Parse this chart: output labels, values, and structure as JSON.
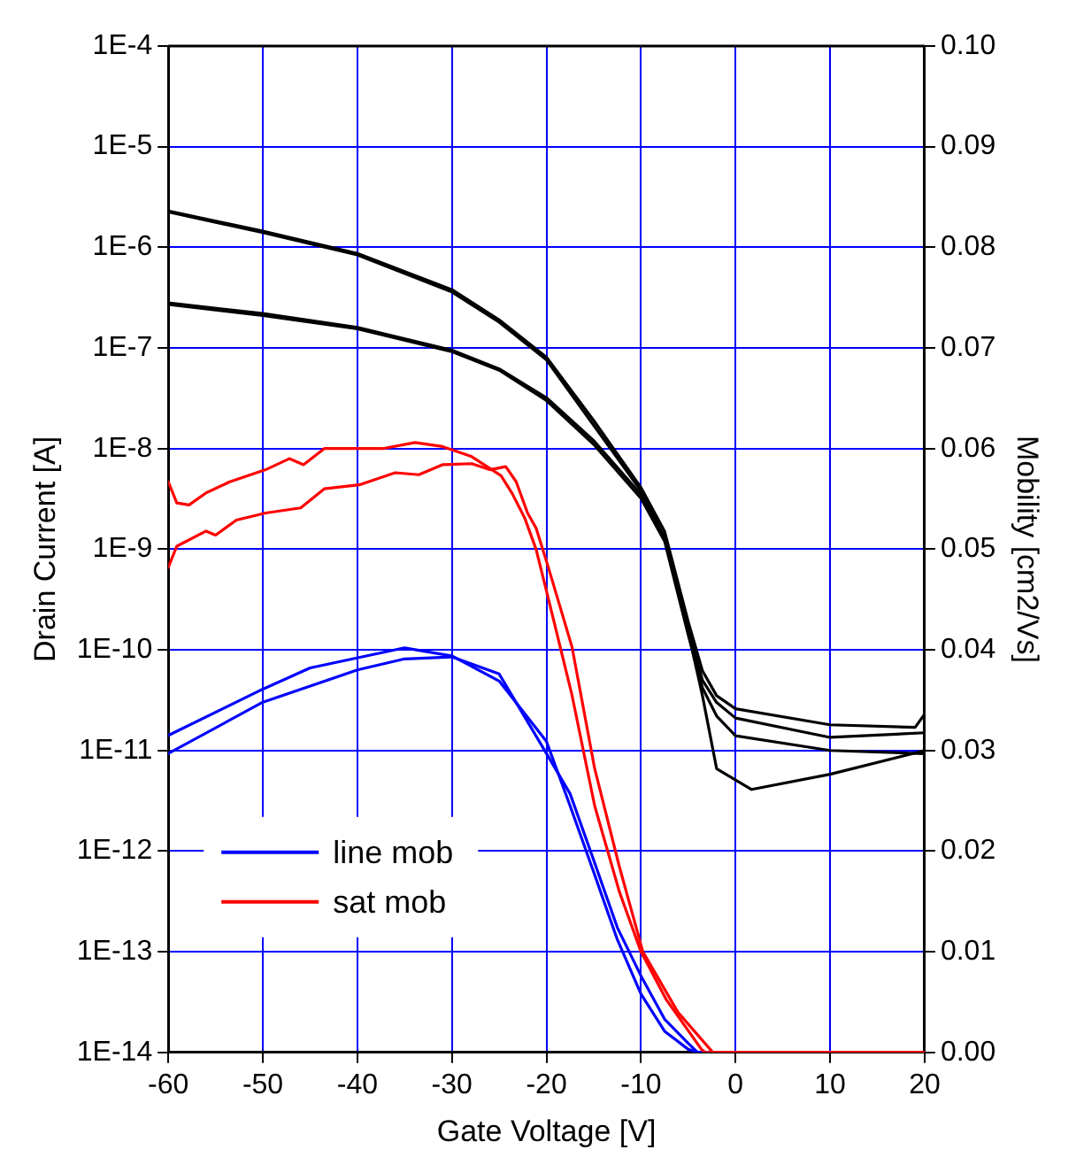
{
  "chart_data": {
    "type": "line",
    "xlabel": "Gate Voltage [V]",
    "ylabel": "Drain Current [A]",
    "y2label": "Mobility [cm2/Vs]",
    "xlim": [
      -60,
      20
    ],
    "xticks": [
      -60,
      -50,
      -40,
      -30,
      -20,
      -10,
      0,
      10,
      20
    ],
    "ylim": [
      1e-14,
      0.0001
    ],
    "yticks": [
      {
        "value": 1e-14,
        "label": "1E-14"
      },
      {
        "value": 1e-13,
        "label": "1E-13"
      },
      {
        "value": 1e-12,
        "label": "1E-12"
      },
      {
        "value": 1e-11,
        "label": "1E-11"
      },
      {
        "value": 1e-10,
        "label": "1E-10"
      },
      {
        "value": 1e-09,
        "label": "1E-9"
      },
      {
        "value": 1e-08,
        "label": "1E-8"
      },
      {
        "value": 1e-07,
        "label": "1E-7"
      },
      {
        "value": 1e-06,
        "label": "1E-6"
      },
      {
        "value": 1e-05,
        "label": "1E-5"
      },
      {
        "value": 0.0001,
        "label": "1E-4"
      }
    ],
    "y2lim": [
      0,
      0.1
    ],
    "y2ticks": [
      {
        "value": 0,
        "label": "0.00"
      },
      {
        "value": 0.01,
        "label": "0.01"
      },
      {
        "value": 0.02,
        "label": "0.02"
      },
      {
        "value": 0.03,
        "label": "0.03"
      },
      {
        "value": 0.04,
        "label": "0.04"
      },
      {
        "value": 0.05,
        "label": "0.05"
      },
      {
        "value": 0.06,
        "label": "0.06"
      },
      {
        "value": 0.07,
        "label": "0.07"
      },
      {
        "value": 0.08,
        "label": "0.08"
      },
      {
        "value": 0.09,
        "label": "0.09"
      },
      {
        "value": 0.1,
        "label": "0.10"
      }
    ],
    "log": "y",
    "grid": true,
    "legend": "bottom left",
    "marker": "none",
    "line_style": "solid",
    "series": [
      {
        "color": "#000000",
        "x": [
          -60,
          -50,
          -40,
          -30,
          -25,
          -20,
          -15,
          -10,
          -7.5,
          -5,
          -3.5,
          -2,
          0,
          10,
          19,
          20
        ],
        "values": [
          2.3e-06,
          1.45e-06,
          8.7e-07,
          3.8e-07,
          1.9e-07,
          8.1e-08,
          1.9e-08,
          4.1e-09,
          1.5e-09,
          1.9e-10,
          6.2e-11,
          3.5e-11,
          2.6e-11,
          1.8e-11,
          1.7e-11,
          2.3e-11
        ]
      },
      {
        "color": "#000000",
        "x": [
          -60,
          -50,
          -40,
          -30,
          -25,
          -20,
          -15,
          -10,
          -7.5,
          -5,
          -3.5,
          -2,
          1.7,
          10,
          20
        ],
        "values": [
          2.25e-06,
          1.4e-06,
          8.4e-07,
          3.6e-07,
          1.8e-07,
          7.6e-08,
          1.7e-08,
          3.8e-09,
          1.3e-09,
          1.5e-10,
          3.5e-11,
          6.6e-12,
          4.1e-12,
          5.8e-12,
          1e-11
        ]
      },
      {
        "color": "#000000",
        "x": [
          -60,
          -50,
          -40,
          -30,
          -25,
          -20,
          -15,
          -10,
          -7.5,
          -5,
          -3.5,
          -2,
          0,
          10,
          20
        ],
        "values": [
          2.8e-07,
          2.2e-07,
          1.6e-07,
          9.5e-08,
          6.2e-08,
          3.2e-08,
          1.2e-08,
          3.5e-09,
          1.3e-09,
          1.6e-10,
          5e-11,
          3e-11,
          2.1e-11,
          1.35e-11,
          1.5e-11
        ]
      },
      {
        "color": "#000000",
        "x": [
          -60,
          -50,
          -40,
          -30,
          -25,
          -20,
          -15,
          -10,
          -7.5,
          -5,
          -3.5,
          -2,
          0,
          10,
          20
        ],
        "values": [
          2.7e-07,
          2.1e-07,
          1.55e-07,
          9.2e-08,
          6e-08,
          3e-08,
          1.1e-08,
          3.2e-09,
          1.2e-09,
          1.4e-10,
          4.2e-11,
          2.2e-11,
          1.4e-11,
          1e-11,
          9.3e-12
        ]
      },
      {
        "name": "line mob",
        "color": "#0000ff",
        "axis": "y2",
        "x": [
          -60,
          -50,
          -45,
          -35,
          -30,
          -25,
          -20,
          -17.5,
          -15,
          -12.5,
          -10,
          -7.5,
          -5,
          -4,
          20
        ],
        "values": [
          0.0315,
          0.0361,
          0.0382,
          0.0402,
          0.0394,
          0.0369,
          0.0309,
          0.0245,
          0.0179,
          0.0112,
          0.0058,
          0.0021,
          0.0003,
          0,
          0
        ]
      },
      {
        "color": "#0000ff",
        "axis": "y2",
        "x": [
          -60,
          -50,
          -40,
          -35,
          -30,
          -25,
          -20,
          -17.5,
          -15,
          -12.5,
          -10,
          -7.5,
          -5,
          -4,
          20
        ],
        "values": [
          0.0297,
          0.0348,
          0.038,
          0.0391,
          0.0393,
          0.0376,
          0.0297,
          0.0257,
          0.0191,
          0.0124,
          0.0076,
          0.0033,
          0.0009,
          0,
          0
        ]
      },
      {
        "name": "sat mob",
        "color": "#ff0000",
        "axis": "y2",
        "x": [
          -60,
          -59.1,
          -57.8,
          -56,
          -53.5,
          -49.7,
          -47.2,
          -45.7,
          -43.5,
          -37.3,
          -33.9,
          -31,
          -27.9,
          -24.8,
          -23.6,
          -22.3,
          -21.1,
          -19.8,
          -17.3,
          -14.9,
          -12.3,
          -10,
          -7.3,
          -3.6,
          -3.2,
          20
        ],
        "values": [
          0.0567,
          0.0546,
          0.0544,
          0.0556,
          0.0567,
          0.0579,
          0.059,
          0.0584,
          0.06,
          0.06,
          0.0606,
          0.0602,
          0.0592,
          0.0573,
          0.0555,
          0.0531,
          0.05,
          0.0451,
          0.0355,
          0.0245,
          0.016,
          0.01,
          0.0052,
          0.0003,
          0,
          0
        ]
      },
      {
        "color": "#ff0000",
        "axis": "y2",
        "x": [
          -60,
          -59.1,
          -56,
          -55,
          -52.8,
          -49.7,
          -46,
          -43.5,
          -39.8,
          -36,
          -33.5,
          -31,
          -27.9,
          -26,
          -24.3,
          -23.2,
          -22,
          -21.1,
          -19.8,
          -17.3,
          -14.9,
          -12.3,
          -9.8,
          -6.1,
          -2.4,
          20
        ],
        "values": [
          0.0482,
          0.0503,
          0.0518,
          0.0514,
          0.0529,
          0.0536,
          0.0541,
          0.056,
          0.0564,
          0.0576,
          0.0574,
          0.0584,
          0.0585,
          0.0579,
          0.0582,
          0.0567,
          0.0536,
          0.0521,
          0.0482,
          0.0403,
          0.0282,
          0.0185,
          0.01,
          0.004,
          0,
          0
        ]
      }
    ]
  }
}
